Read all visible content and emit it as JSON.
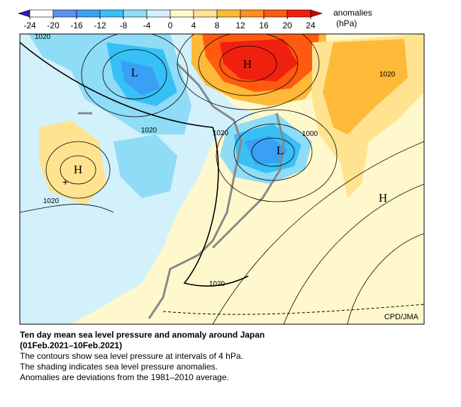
{
  "colorbar": {
    "ticks": [
      -24,
      -20,
      -16,
      -12,
      -8,
      -4,
      0,
      4,
      8,
      12,
      16,
      20,
      24
    ],
    "colors": [
      "#2a1fb0",
      "#ffffff",
      "#5f8ff0",
      "#3aa0f5",
      "#37c0f5",
      "#8fdcf7",
      "#d2f1fb",
      "#fff8cc",
      "#ffe391",
      "#ffb938",
      "#ff9020",
      "#ff5a10",
      "#f02010",
      "#d00000"
    ],
    "label": "anomalies",
    "unit": "(hPa)"
  },
  "map": {
    "labels": [
      "1020",
      "L",
      "H",
      "1020",
      "1020",
      "1020",
      "1000",
      "L",
      "H",
      "1020",
      "H",
      "1020"
    ],
    "credit": "CPD/JMA"
  },
  "caption": {
    "title": "Ten day mean sea level pressure and anomaly around Japan",
    "period": "(01Feb.2021–10Feb.2021)",
    "lines": [
      "The contours show sea level pressure at intervals of 4 hPa.",
      "The shading indicates sea level pressure anomalies.",
      "Anomalies are deviations from the 1981–2010 average."
    ]
  }
}
